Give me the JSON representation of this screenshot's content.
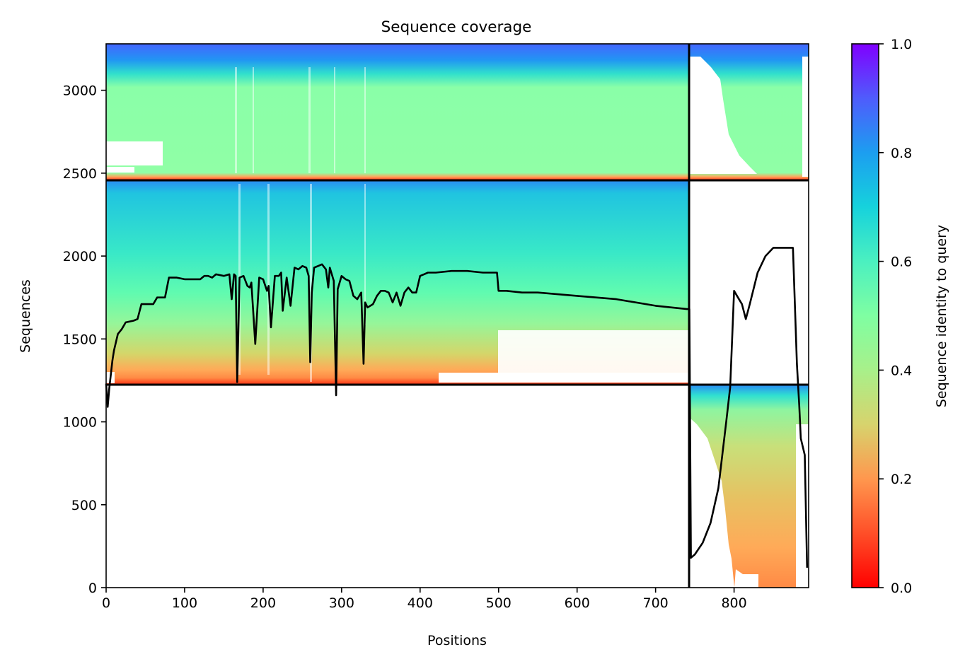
{
  "chart_data": {
    "type": "heatmap",
    "title": "Sequence coverage",
    "xlabel": "Positions",
    "ylabel": "Sequences",
    "xlim": [
      0,
      895
    ],
    "ylim": [
      0,
      3280
    ],
    "xticks": [
      0,
      100,
      200,
      300,
      400,
      500,
      600,
      700,
      800
    ],
    "yticks": [
      0,
      500,
      1000,
      1500,
      2000,
      2500,
      3000
    ],
    "grid": false,
    "colormap": "rainbow",
    "colorbar": {
      "label": "Sequence identity to query",
      "range": [
        0,
        1
      ],
      "ticks": [
        "0.0",
        "0.2",
        "0.4",
        "0.6",
        "0.8",
        "1.0"
      ]
    },
    "blocks": {
      "column_split": 743,
      "row_splits": [
        1230,
        2457
      ]
    },
    "coverage_line": {
      "x": [
        0,
        2,
        4,
        8,
        10,
        15,
        20,
        25,
        35,
        40,
        45,
        50,
        55,
        60,
        65,
        70,
        75,
        80,
        90,
        100,
        110,
        120,
        125,
        130,
        135,
        140,
        150,
        157,
        160,
        163,
        165,
        167,
        170,
        175,
        180,
        183,
        185,
        190,
        195,
        200,
        205,
        207,
        210,
        215,
        220,
        223,
        225,
        230,
        235,
        240,
        245,
        250,
        255,
        258,
        260,
        262,
        265,
        270,
        275,
        280,
        283,
        285,
        290,
        293,
        295,
        300,
        305,
        310,
        315,
        320,
        325,
        328,
        330,
        333,
        340,
        345,
        350,
        355,
        360,
        365,
        370,
        375,
        380,
        385,
        390,
        395,
        400,
        405,
        410,
        420,
        440,
        460,
        480,
        498,
        500,
        510,
        530,
        550,
        600,
        650,
        700,
        740,
        743,
        745,
        750,
        760,
        770,
        780,
        790,
        795,
        800,
        805,
        810,
        815,
        820,
        830,
        840,
        850,
        860,
        870,
        875,
        880,
        883,
        885,
        890,
        893
      ],
      "y": [
        1230,
        1090,
        1200,
        1370,
        1430,
        1530,
        1560,
        1600,
        1610,
        1620,
        1710,
        1710,
        1710,
        1710,
        1750,
        1750,
        1750,
        1870,
        1870,
        1860,
        1860,
        1860,
        1880,
        1880,
        1870,
        1890,
        1880,
        1890,
        1740,
        1890,
        1880,
        1240,
        1870,
        1880,
        1820,
        1810,
        1840,
        1470,
        1870,
        1860,
        1790,
        1820,
        1570,
        1880,
        1880,
        1900,
        1670,
        1870,
        1700,
        1930,
        1920,
        1940,
        1930,
        1880,
        1360,
        1780,
        1930,
        1940,
        1950,
        1920,
        1810,
        1930,
        1850,
        1160,
        1800,
        1880,
        1860,
        1850,
        1760,
        1740,
        1780,
        1350,
        1720,
        1690,
        1710,
        1760,
        1790,
        1790,
        1780,
        1720,
        1780,
        1700,
        1780,
        1810,
        1780,
        1780,
        1880,
        1890,
        1900,
        1900,
        1910,
        1910,
        1900,
        1900,
        1790,
        1790,
        1780,
        1780,
        1760,
        1740,
        1700,
        1680,
        1680,
        180,
        200,
        270,
        390,
        600,
        1000,
        1210,
        1790,
        1750,
        1710,
        1620,
        1710,
        1900,
        2000,
        2050,
        2050,
        2050,
        2050,
        1350,
        1100,
        900,
        800,
        120
      ]
    }
  }
}
